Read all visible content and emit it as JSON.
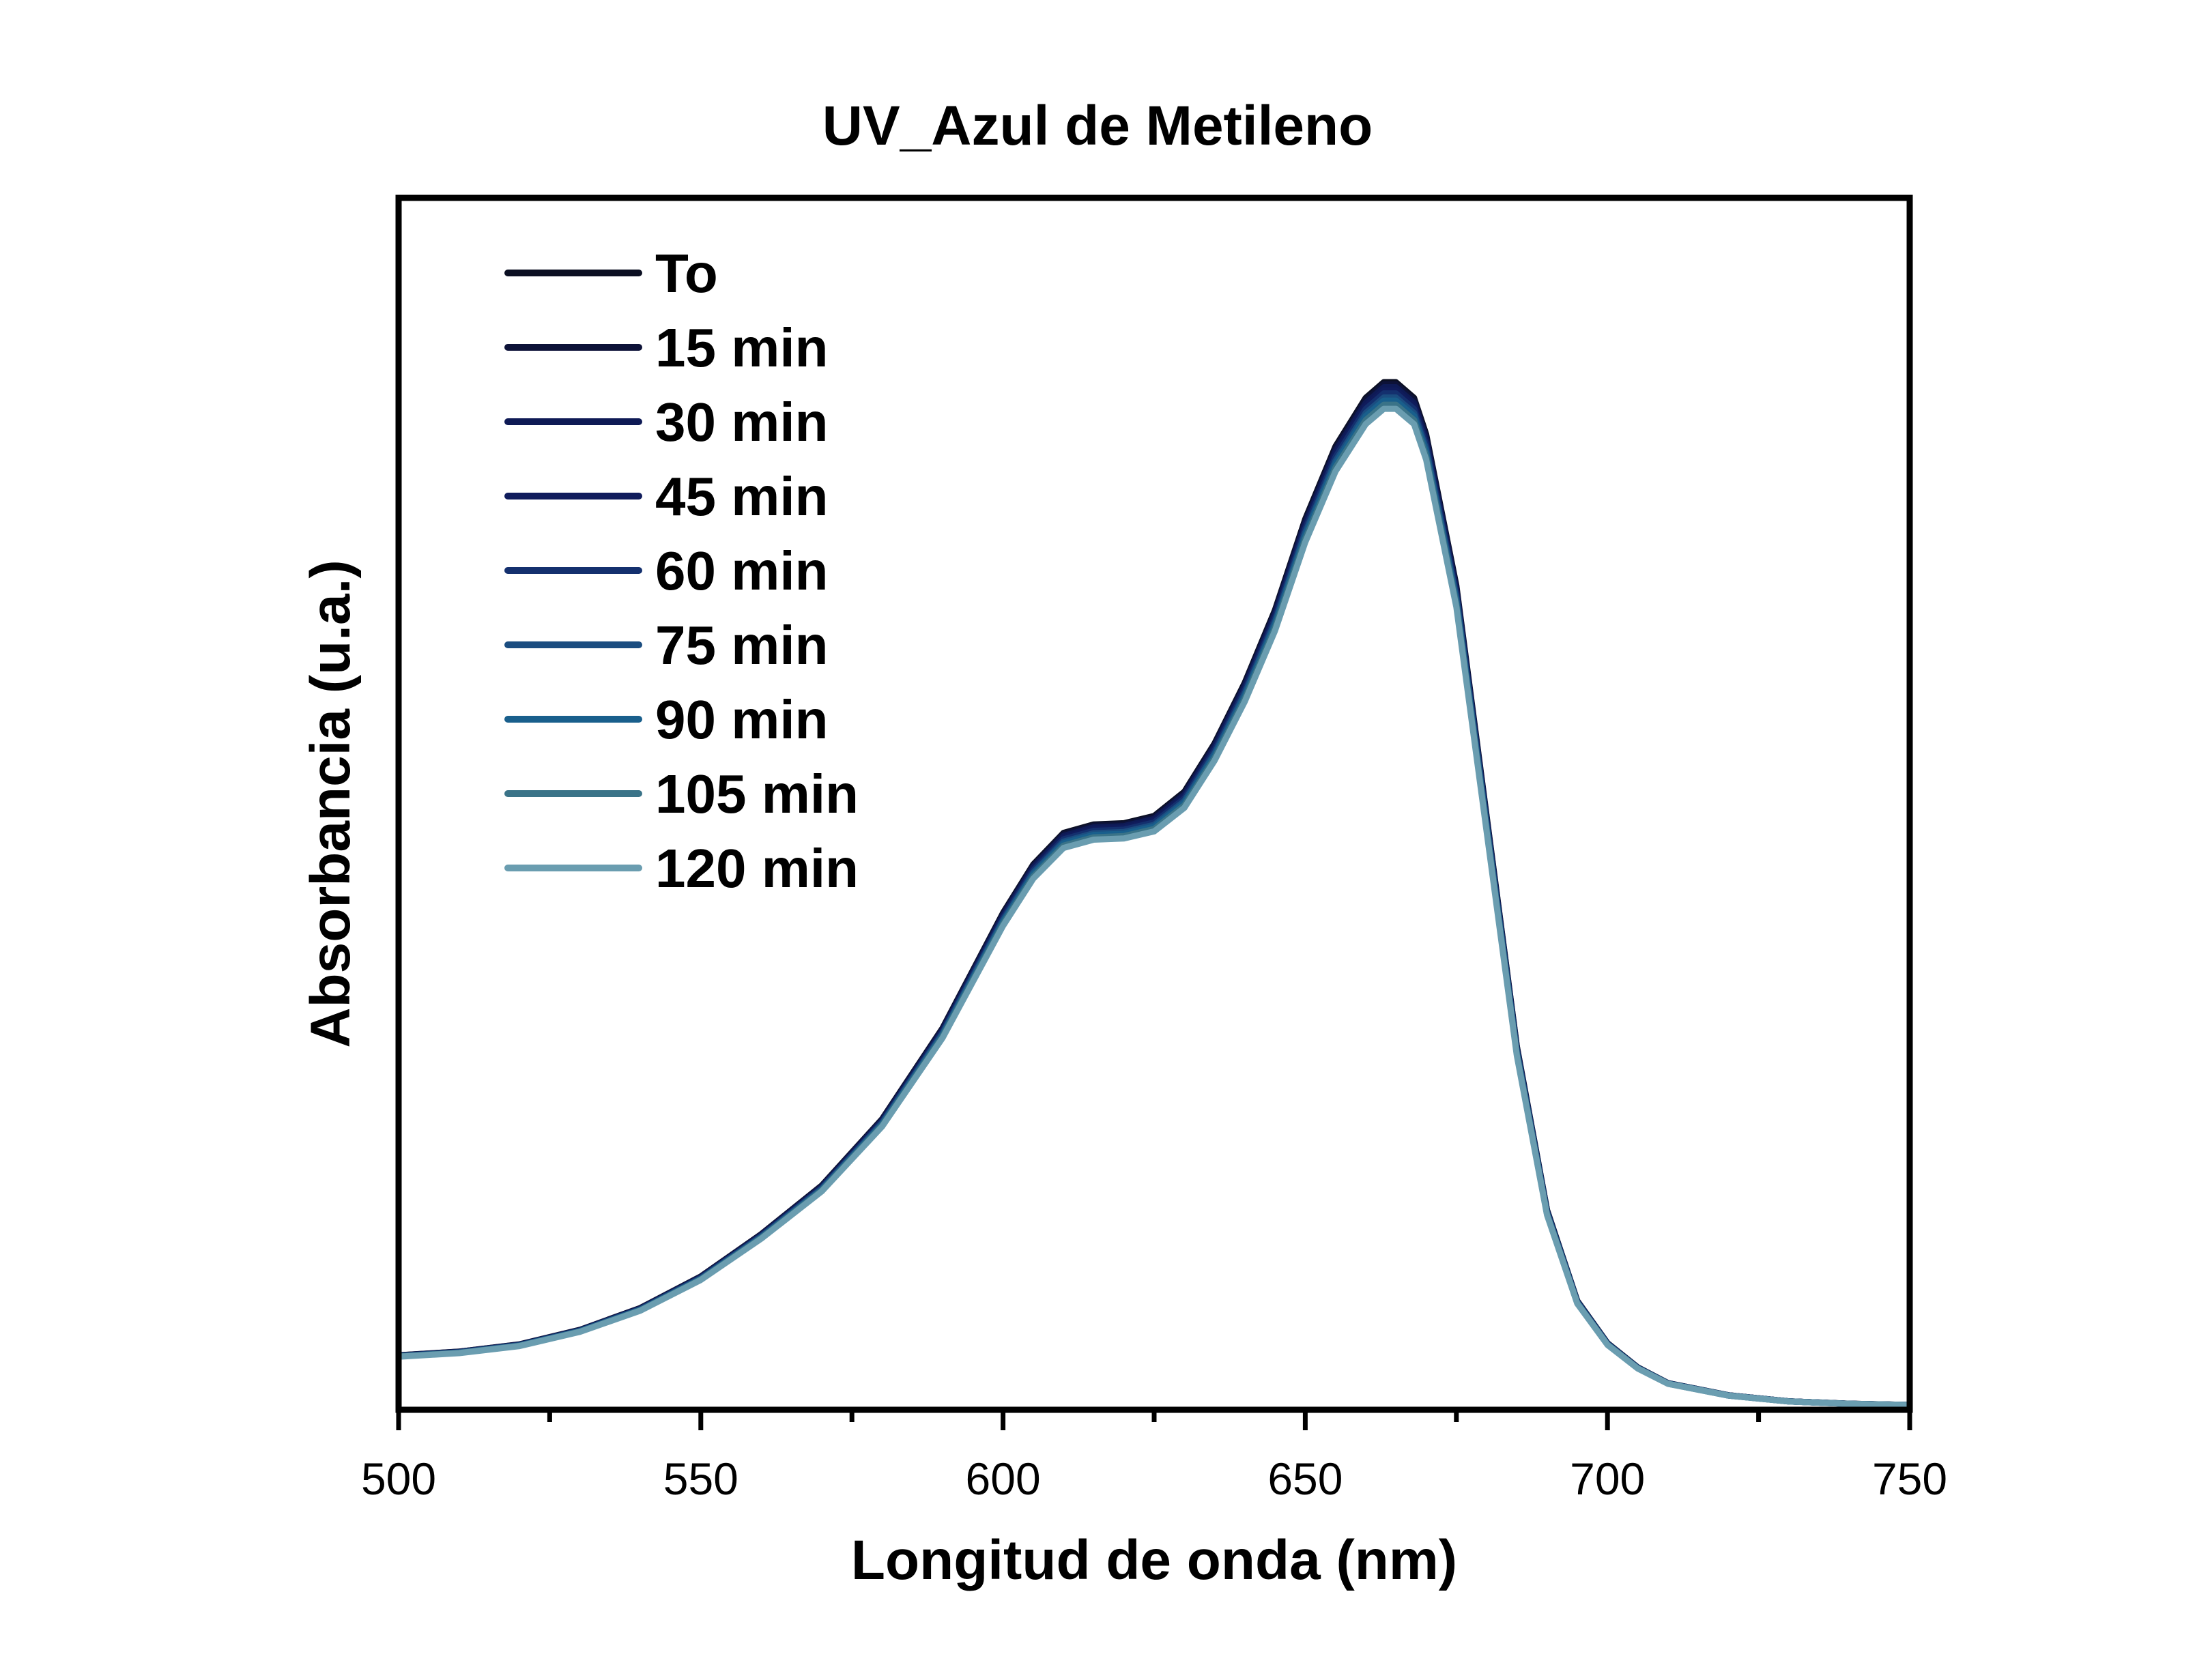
{
  "chart_data": {
    "type": "line",
    "title": "UV_Azul de Metileno",
    "xlabel": "Longitud de onda (nm)",
    "ylabel": "Absorbancia (u.a.)",
    "xlim": [
      500,
      750
    ],
    "xticks": [
      500,
      550,
      600,
      650,
      700,
      750
    ],
    "xtick_labels": [
      "500",
      "550",
      "600",
      "650",
      "700",
      "750"
    ],
    "ylim": [
      0,
      1.0
    ],
    "y_tick_labels_shown": false,
    "grid": false,
    "legend_position": "top-left",
    "wavelength_nm": [
      500,
      510,
      520,
      530,
      540,
      550,
      560,
      570,
      580,
      590,
      600,
      605,
      610,
      615,
      620,
      625,
      630,
      635,
      640,
      645,
      650,
      655,
      660,
      663,
      665,
      668,
      670,
      675,
      680,
      685,
      690,
      695,
      700,
      705,
      710,
      720,
      730,
      740,
      750
    ],
    "base_absorbance": [
      0.045,
      0.048,
      0.054,
      0.066,
      0.084,
      0.11,
      0.145,
      0.185,
      0.24,
      0.315,
      0.41,
      0.45,
      0.476,
      0.483,
      0.484,
      0.49,
      0.51,
      0.55,
      0.6,
      0.66,
      0.735,
      0.795,
      0.835,
      0.848,
      0.848,
      0.835,
      0.805,
      0.68,
      0.49,
      0.3,
      0.165,
      0.09,
      0.055,
      0.035,
      0.022,
      0.012,
      0.007,
      0.005,
      0.004
    ],
    "series": [
      {
        "name": "To",
        "color": "#0b0f22",
        "scale": 1.0
      },
      {
        "name": "15 min",
        "color": "#0d1238",
        "scale": 0.998
      },
      {
        "name": "30 min",
        "color": "#0e1a55",
        "scale": 0.995
      },
      {
        "name": "45 min",
        "color": "#101c5c",
        "scale": 0.992
      },
      {
        "name": "60 min",
        "color": "#14306e",
        "scale": 0.989
      },
      {
        "name": "75 min",
        "color": "#1b4d80",
        "scale": 0.985
      },
      {
        "name": "90 min",
        "color": "#195f8c",
        "scale": 0.982
      },
      {
        "name": "105 min",
        "color": "#3a7388",
        "scale": 0.978
      },
      {
        "name": "120 min",
        "color": "#6a9db0",
        "scale": 0.974
      }
    ]
  }
}
